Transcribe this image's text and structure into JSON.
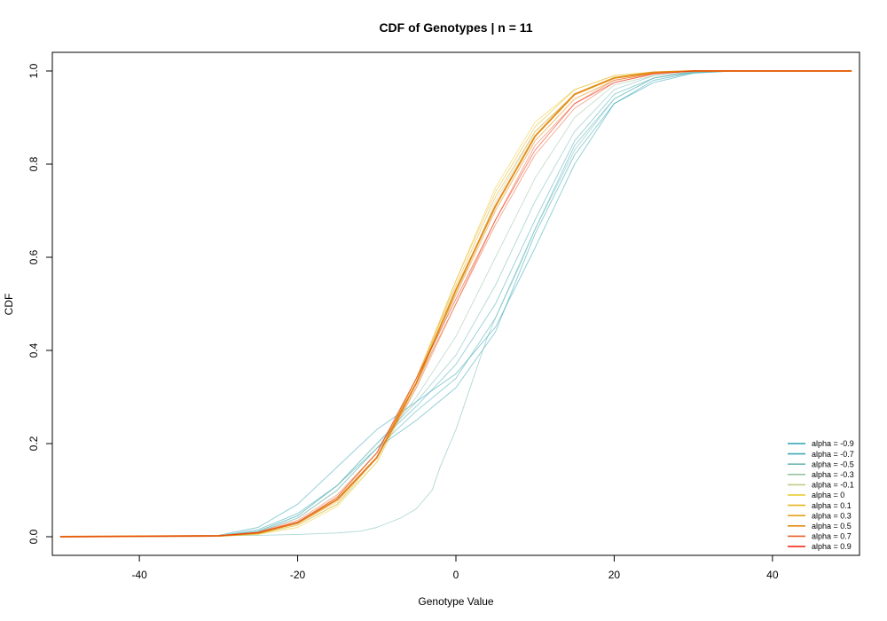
{
  "chart_data": {
    "type": "line",
    "title": "CDF of Genotypes | n = 11",
    "xlabel": "Genotype Value",
    "ylabel": "CDF",
    "xlim": [
      -51,
      51
    ],
    "ylim": [
      -0.04,
      1.04
    ],
    "xticks": [
      -40,
      -20,
      0,
      20,
      40
    ],
    "yticks": [
      0.0,
      0.2,
      0.4,
      0.6,
      0.8,
      1.0
    ],
    "ytick_labels": [
      "0.0",
      "0.2",
      "0.4",
      "0.6",
      "0.8",
      "1.0"
    ],
    "grid": false,
    "legend_position": "bottom-right",
    "x_domain": [
      -50,
      50
    ],
    "legend": [
      {
        "label": "alpha = -0.9",
        "color": "#2AA1B3"
      },
      {
        "label": "alpha = -0.7",
        "color": "#3FA9B5"
      },
      {
        "label": "alpha = -0.5",
        "color": "#6FB8B5"
      },
      {
        "label": "alpha = -0.3",
        "color": "#96C3A3"
      },
      {
        "label": "alpha = -0.1",
        "color": "#BFCD89"
      },
      {
        "label": "alpha = 0",
        "color": "#E9C825"
      },
      {
        "label": "alpha = 0.1",
        "color": "#E5B51F"
      },
      {
        "label": "alpha = 0.3",
        "color": "#E3A21A"
      },
      {
        "label": "alpha = 0.5",
        "color": "#E38A0F"
      },
      {
        "label": "alpha = 0.7",
        "color": "#E8602A"
      },
      {
        "label": "alpha = 0.9",
        "color": "#F21A00"
      }
    ],
    "series": [
      {
        "color": "#2AA1B3",
        "width": 0.9,
        "values": [
          [
            -50,
            0
          ],
          [
            -30,
            0.002
          ],
          [
            -25,
            0.015
          ],
          [
            -20,
            0.05
          ],
          [
            -15,
            0.11
          ],
          [
            -10,
            0.19
          ],
          [
            -5,
            0.25
          ],
          [
            0,
            0.32
          ],
          [
            5,
            0.44
          ],
          [
            10,
            0.65
          ],
          [
            15,
            0.82
          ],
          [
            20,
            0.93
          ],
          [
            25,
            0.975
          ],
          [
            30,
            0.995
          ],
          [
            35,
            1
          ],
          [
            50,
            1
          ]
        ]
      },
      {
        "color": "#2AA1B3",
        "width": 0.9,
        "values": [
          [
            -50,
            0
          ],
          [
            -30,
            0.003
          ],
          [
            -25,
            0.02
          ],
          [
            -20,
            0.07
          ],
          [
            -15,
            0.15
          ],
          [
            -10,
            0.23
          ],
          [
            -5,
            0.29
          ],
          [
            0,
            0.35
          ],
          [
            5,
            0.45
          ],
          [
            10,
            0.62
          ],
          [
            15,
            0.8
          ],
          [
            20,
            0.93
          ],
          [
            25,
            0.98
          ],
          [
            30,
            0.996
          ],
          [
            35,
            1
          ],
          [
            50,
            1
          ]
        ]
      },
      {
        "color": "#3FA9B5",
        "width": 0.9,
        "values": [
          [
            -50,
            0
          ],
          [
            -30,
            0.001
          ],
          [
            -25,
            0.01
          ],
          [
            -20,
            0.04
          ],
          [
            -15,
            0.1
          ],
          [
            -10,
            0.19
          ],
          [
            -5,
            0.27
          ],
          [
            0,
            0.34
          ],
          [
            5,
            0.47
          ],
          [
            10,
            0.66
          ],
          [
            15,
            0.84
          ],
          [
            20,
            0.94
          ],
          [
            25,
            0.985
          ],
          [
            30,
            0.997
          ],
          [
            35,
            1
          ],
          [
            50,
            1
          ]
        ]
      },
      {
        "color": "#3FA9B5",
        "width": 0.9,
        "values": [
          [
            -50,
            0
          ],
          [
            -30,
            0.002
          ],
          [
            -25,
            0.012
          ],
          [
            -20,
            0.045
          ],
          [
            -15,
            0.11
          ],
          [
            -10,
            0.2
          ],
          [
            -5,
            0.28
          ],
          [
            0,
            0.37
          ],
          [
            5,
            0.5
          ],
          [
            10,
            0.68
          ],
          [
            15,
            0.85
          ],
          [
            20,
            0.95
          ],
          [
            25,
            0.985
          ],
          [
            30,
            0.998
          ],
          [
            35,
            1
          ],
          [
            50,
            1
          ]
        ]
      },
      {
        "color": "#6FB8B5",
        "width": 0.9,
        "values": [
          [
            -50,
            0
          ],
          [
            -25,
            0.003
          ],
          [
            -20,
            0.005
          ],
          [
            -15,
            0.008
          ],
          [
            -12,
            0.012
          ],
          [
            -10,
            0.02
          ],
          [
            -7,
            0.04
          ],
          [
            -5,
            0.06
          ],
          [
            -3,
            0.1
          ],
          [
            -2,
            0.15
          ],
          [
            0,
            0.23
          ],
          [
            2,
            0.33
          ],
          [
            4,
            0.43
          ],
          [
            5,
            0.47
          ],
          [
            8,
            0.58
          ],
          [
            10,
            0.66
          ],
          [
            15,
            0.83
          ],
          [
            20,
            0.94
          ],
          [
            25,
            0.985
          ],
          [
            30,
            0.997
          ],
          [
            35,
            1
          ],
          [
            50,
            1
          ]
        ]
      },
      {
        "color": "#6FB8B5",
        "width": 0.9,
        "values": [
          [
            -50,
            0
          ],
          [
            -30,
            0.002
          ],
          [
            -25,
            0.012
          ],
          [
            -20,
            0.045
          ],
          [
            -15,
            0.11
          ],
          [
            -10,
            0.2
          ],
          [
            -5,
            0.29
          ],
          [
            0,
            0.39
          ],
          [
            5,
            0.54
          ],
          [
            10,
            0.72
          ],
          [
            15,
            0.87
          ],
          [
            20,
            0.96
          ],
          [
            25,
            0.99
          ],
          [
            30,
            0.998
          ],
          [
            35,
            1
          ],
          [
            50,
            1
          ]
        ]
      },
      {
        "color": "#96C3A3",
        "width": 0.9,
        "values": [
          [
            -50,
            0
          ],
          [
            -30,
            0.001
          ],
          [
            -25,
            0.01
          ],
          [
            -20,
            0.04
          ],
          [
            -15,
            0.1
          ],
          [
            -10,
            0.19
          ],
          [
            -5,
            0.3
          ],
          [
            0,
            0.43
          ],
          [
            5,
            0.6
          ],
          [
            10,
            0.77
          ],
          [
            15,
            0.9
          ],
          [
            20,
            0.97
          ],
          [
            25,
            0.99
          ],
          [
            30,
            0.998
          ],
          [
            35,
            1
          ],
          [
            50,
            1
          ]
        ]
      },
      {
        "color": "#BFCD89",
        "width": 0.9,
        "values": [
          [
            -50,
            0
          ],
          [
            -30,
            0.001
          ],
          [
            -25,
            0.006
          ],
          [
            -20,
            0.025
          ],
          [
            -15,
            0.07
          ],
          [
            -10,
            0.16
          ],
          [
            -5,
            0.32
          ],
          [
            0,
            0.52
          ],
          [
            5,
            0.72
          ],
          [
            10,
            0.87
          ],
          [
            15,
            0.95
          ],
          [
            20,
            0.985
          ],
          [
            25,
            0.997
          ],
          [
            30,
            1
          ],
          [
            50,
            1
          ]
        ]
      },
      {
        "color": "#E9C825",
        "width": 0.9,
        "values": [
          [
            -50,
            0
          ],
          [
            -30,
            0.001
          ],
          [
            -25,
            0.005
          ],
          [
            -20,
            0.02
          ],
          [
            -15,
            0.065
          ],
          [
            -10,
            0.16
          ],
          [
            -5,
            0.33
          ],
          [
            0,
            0.55
          ],
          [
            5,
            0.75
          ],
          [
            10,
            0.89
          ],
          [
            15,
            0.96
          ],
          [
            20,
            0.99
          ],
          [
            25,
            0.998
          ],
          [
            30,
            1
          ],
          [
            50,
            1
          ]
        ]
      },
      {
        "color": "#E5B51F",
        "width": 0.9,
        "values": [
          [
            -50,
            0
          ],
          [
            -30,
            0.001
          ],
          [
            -25,
            0.006
          ],
          [
            -20,
            0.025
          ],
          [
            -15,
            0.07
          ],
          [
            -10,
            0.17
          ],
          [
            -5,
            0.34
          ],
          [
            0,
            0.55
          ],
          [
            5,
            0.74
          ],
          [
            10,
            0.88
          ],
          [
            15,
            0.96
          ],
          [
            20,
            0.99
          ],
          [
            25,
            0.998
          ],
          [
            30,
            1
          ],
          [
            50,
            1
          ]
        ]
      },
      {
        "color": "#E3A21A",
        "width": 0.9,
        "values": [
          [
            -50,
            0
          ],
          [
            -30,
            0.002
          ],
          [
            -25,
            0.007
          ],
          [
            -20,
            0.028
          ],
          [
            -15,
            0.075
          ],
          [
            -10,
            0.17
          ],
          [
            -5,
            0.34
          ],
          [
            0,
            0.54
          ],
          [
            5,
            0.73
          ],
          [
            10,
            0.87
          ],
          [
            15,
            0.95
          ],
          [
            20,
            0.985
          ],
          [
            25,
            0.997
          ],
          [
            30,
            1
          ],
          [
            50,
            1
          ]
        ]
      },
      {
        "color": "#E38A0F",
        "width": 2.0,
        "values": [
          [
            -50,
            0
          ],
          [
            -30,
            0.002
          ],
          [
            -25,
            0.008
          ],
          [
            -20,
            0.03
          ],
          [
            -15,
            0.08
          ],
          [
            -10,
            0.17
          ],
          [
            -5,
            0.33
          ],
          [
            0,
            0.53
          ],
          [
            5,
            0.71
          ],
          [
            10,
            0.86
          ],
          [
            15,
            0.95
          ],
          [
            20,
            0.985
          ],
          [
            25,
            0.997
          ],
          [
            30,
            1
          ],
          [
            50,
            1
          ]
        ]
      },
      {
        "color": "#E38A0F",
        "width": 1.0,
        "values": [
          [
            -50,
            0
          ],
          [
            -30,
            0.002
          ],
          [
            -25,
            0.008
          ],
          [
            -20,
            0.03
          ],
          [
            -15,
            0.085
          ],
          [
            -10,
            0.18
          ],
          [
            -5,
            0.34
          ],
          [
            0,
            0.52
          ],
          [
            5,
            0.7
          ],
          [
            10,
            0.85
          ],
          [
            15,
            0.94
          ],
          [
            20,
            0.98
          ],
          [
            25,
            0.995
          ],
          [
            30,
            1
          ],
          [
            50,
            1
          ]
        ]
      },
      {
        "color": "#E8602A",
        "width": 0.9,
        "values": [
          [
            -50,
            0
          ],
          [
            -30,
            0.002
          ],
          [
            -25,
            0.008
          ],
          [
            -20,
            0.03
          ],
          [
            -15,
            0.08
          ],
          [
            -10,
            0.17
          ],
          [
            -5,
            0.32
          ],
          [
            0,
            0.5
          ],
          [
            5,
            0.68
          ],
          [
            10,
            0.84
          ],
          [
            15,
            0.93
          ],
          [
            20,
            0.98
          ],
          [
            25,
            0.995
          ],
          [
            30,
            1
          ],
          [
            50,
            1
          ]
        ]
      },
      {
        "color": "#E8602A",
        "width": 0.9,
        "values": [
          [
            -50,
            0
          ],
          [
            -30,
            0.002
          ],
          [
            -25,
            0.01
          ],
          [
            -20,
            0.035
          ],
          [
            -15,
            0.09
          ],
          [
            -10,
            0.18
          ],
          [
            -5,
            0.33
          ],
          [
            0,
            0.5
          ],
          [
            5,
            0.67
          ],
          [
            10,
            0.82
          ],
          [
            15,
            0.92
          ],
          [
            20,
            0.975
          ],
          [
            25,
            0.993
          ],
          [
            30,
            1
          ],
          [
            50,
            1
          ]
        ]
      },
      {
        "color": "#F21A00",
        "width": 0.9,
        "values": [
          [
            -50,
            0
          ],
          [
            -30,
            0.002
          ],
          [
            -25,
            0.009
          ],
          [
            -20,
            0.032
          ],
          [
            -15,
            0.085
          ],
          [
            -10,
            0.18
          ],
          [
            -5,
            0.34
          ],
          [
            0,
            0.51
          ],
          [
            5,
            0.68
          ],
          [
            10,
            0.83
          ],
          [
            15,
            0.93
          ],
          [
            20,
            0.975
          ],
          [
            25,
            0.994
          ],
          [
            30,
            1
          ],
          [
            50,
            1
          ]
        ]
      }
    ]
  }
}
